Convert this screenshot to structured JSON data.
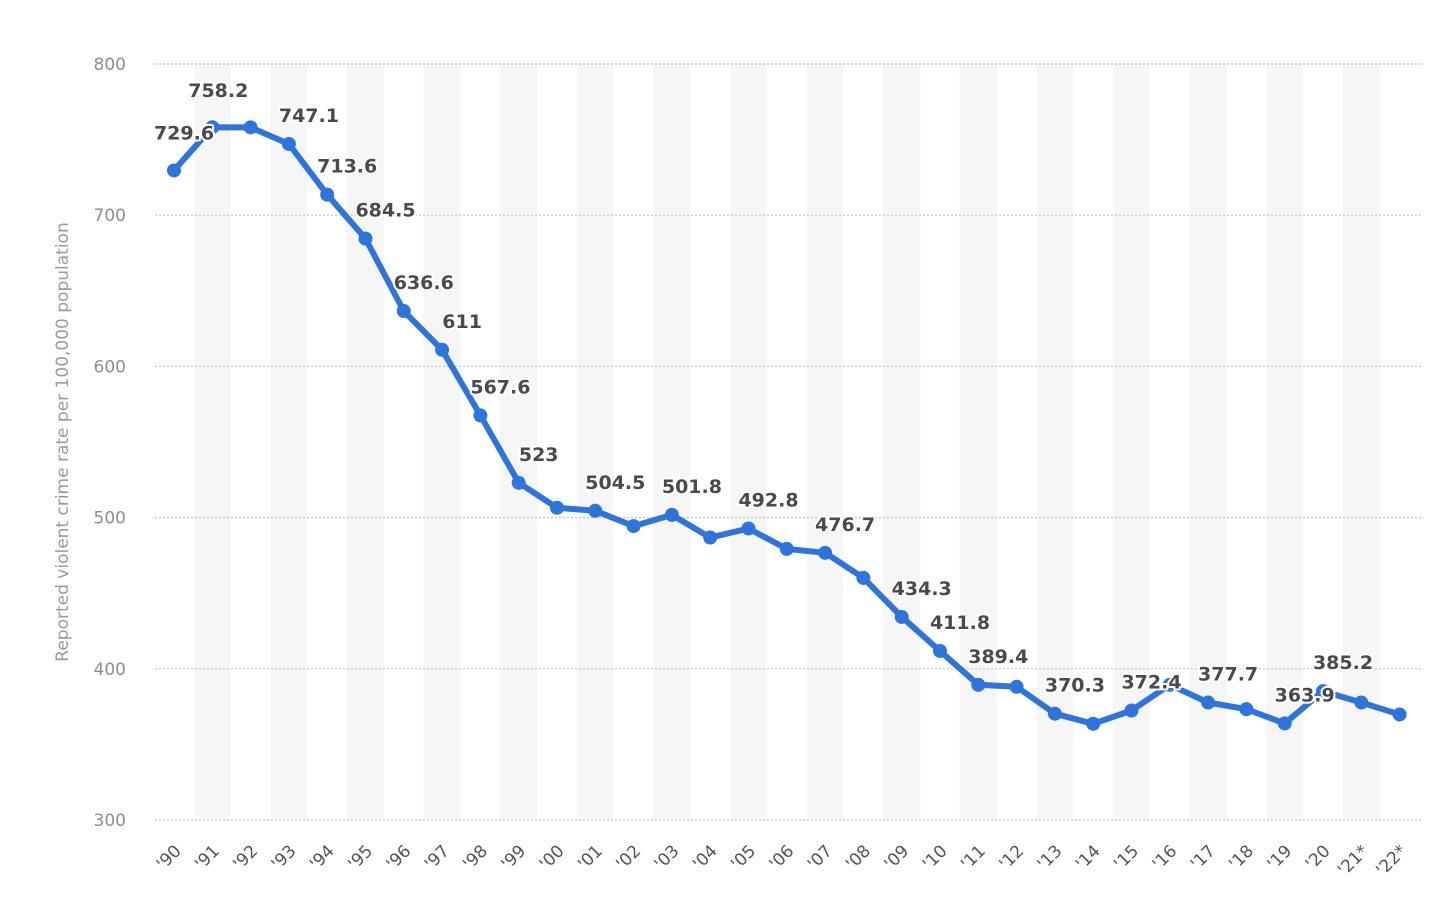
{
  "chart_data": {
    "type": "line",
    "title": "",
    "xlabel": "",
    "ylabel": "Reported violent crime rate per 100,000 population",
    "ylim": [
      300,
      800
    ],
    "yticks": [
      "300",
      "400",
      "500",
      "600",
      "700",
      "800"
    ],
    "grid": true,
    "categories": [
      "'90",
      "'91",
      "'92",
      "'93",
      "'94",
      "'95",
      "'96",
      "'97",
      "'98",
      "'99",
      "'00",
      "'01",
      "'02",
      "'03",
      "'04",
      "'05",
      "'06",
      "'07",
      "'08",
      "'09",
      "'10",
      "'11",
      "'12",
      "'13",
      "'14",
      "'15",
      "'16",
      "'17",
      "'18",
      "'19",
      "'20",
      "'21*",
      "'22*"
    ],
    "values": [
      729.6,
      758.2,
      758.1,
      747.1,
      713.6,
      684.5,
      636.6,
      611,
      567.6,
      523,
      506.5,
      504.5,
      494.4,
      501.8,
      486.8,
      492.8,
      479.3,
      476.7,
      460.1,
      434.3,
      411.8,
      389.4,
      388.1,
      370.3,
      363.6,
      372.4,
      389.4,
      377.7,
      373.3,
      363.9,
      385.2,
      377.7,
      369.8
    ],
    "labels": [
      "729.6",
      "758.2",
      "747.1",
      "713.6",
      "684.5",
      "636.6",
      "611",
      "567.6",
      "523",
      "504.5",
      "501.8",
      "492.8",
      "476.7",
      "434.3",
      "411.8",
      "389.4",
      "370.3",
      "372.4",
      "377.7",
      "363.9",
      "385.2"
    ],
    "label_indices": [
      0,
      1,
      3,
      4,
      5,
      6,
      7,
      8,
      9,
      11,
      13,
      15,
      17,
      19,
      20,
      21,
      23,
      25,
      27,
      29,
      30
    ],
    "colors": {
      "line": "#2e74dd",
      "band": "#f6f6f6",
      "grid": "#c4c4c4"
    }
  }
}
